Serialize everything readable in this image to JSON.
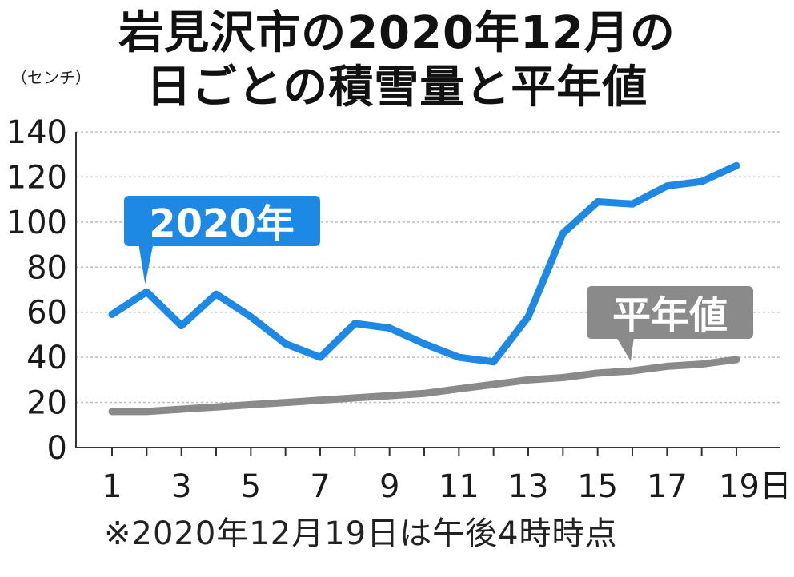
{
  "title_line1": "岩見沢市の2020年12月の",
  "title_line2": "日ごとの積雪量と平年値",
  "unit": "（センチ）",
  "footnote": "※2020年12月19日は午後4時時点",
  "colors": {
    "series_2020": "#1e88e5",
    "series_normal": "#8a8a8a",
    "grid": "#bdbdbd"
  },
  "chart_data": {
    "type": "line",
    "xlabel": "",
    "ylabel": "（センチ）",
    "ylim": [
      0,
      140
    ],
    "yticks": [
      0,
      20,
      40,
      60,
      80,
      100,
      120,
      140
    ],
    "xlim": [
      1,
      19
    ],
    "xticks": [
      "1",
      "3",
      "5",
      "7",
      "9",
      "11",
      "13",
      "15",
      "17",
      "19日"
    ],
    "grid": true,
    "x": [
      1,
      2,
      3,
      4,
      5,
      6,
      7,
      8,
      9,
      10,
      11,
      12,
      13,
      14,
      15,
      16,
      17,
      18,
      19
    ],
    "series": [
      {
        "name": "2020年",
        "values": [
          59,
          69,
          54,
          68,
          58,
          46,
          40,
          55,
          53,
          46,
          40,
          38,
          58,
          95,
          109,
          108,
          116,
          118,
          125
        ]
      },
      {
        "name": "平年値",
        "values": [
          16,
          16,
          17,
          18,
          19,
          20,
          21,
          22,
          23,
          24,
          26,
          28,
          30,
          31,
          33,
          34,
          36,
          37,
          39
        ]
      }
    ]
  }
}
